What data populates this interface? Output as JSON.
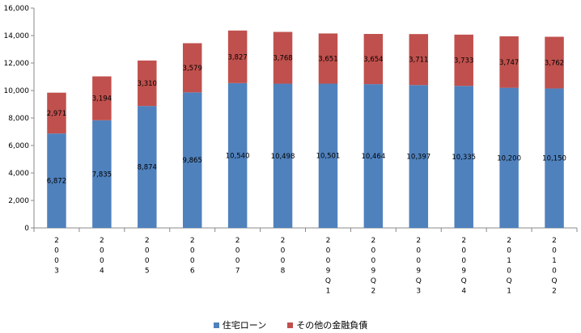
{
  "chart_data": {
    "type": "bar",
    "stacked": true,
    "categories": [
      [
        "2",
        "0",
        "0",
        "3"
      ],
      [
        "2",
        "0",
        "0",
        "4"
      ],
      [
        "2",
        "0",
        "0",
        "5"
      ],
      [
        "2",
        "0",
        "0",
        "6"
      ],
      [
        "2",
        "0",
        "0",
        "7"
      ],
      [
        "2",
        "0",
        "0",
        "8"
      ],
      [
        "2",
        "0",
        "0",
        "9",
        "Q",
        "1"
      ],
      [
        "2",
        "0",
        "0",
        "9",
        "Q",
        "2"
      ],
      [
        "2",
        "0",
        "0",
        "9",
        "Q",
        "3"
      ],
      [
        "2",
        "0",
        "0",
        "9",
        "Q",
        "4"
      ],
      [
        "2",
        "0",
        "1",
        "0",
        "Q",
        "1"
      ],
      [
        "2",
        "0",
        "1",
        "0",
        "Q",
        "2"
      ]
    ],
    "series": [
      {
        "name": "住宅ローン",
        "color": "#4f81bd",
        "values": [
          6872,
          7835,
          8874,
          9865,
          10540,
          10498,
          10501,
          10464,
          10397,
          10335,
          10200,
          10150
        ],
        "labels": [
          "6,872",
          "7,835",
          "8,874",
          "9,865",
          "10,540",
          "10,498",
          "10,501",
          "10,464",
          "10,397",
          "10,335",
          "10,200",
          "10,150"
        ]
      },
      {
        "name": "その他の金融負債",
        "color": "#c0504d",
        "values": [
          2971,
          3194,
          3310,
          3579,
          3827,
          3768,
          3651,
          3654,
          3711,
          3733,
          3747,
          3762
        ],
        "labels": [
          "2,971",
          "3,194",
          "3,310",
          "3,579",
          "3,827",
          "3,768",
          "3,651",
          "3,654",
          "3,711",
          "3,733",
          "3,747",
          "3,762"
        ]
      }
    ],
    "ylim": [
      0,
      16000
    ],
    "yticks": [
      0,
      2000,
      4000,
      6000,
      8000,
      10000,
      12000,
      14000,
      16000
    ],
    "ytick_labels": [
      "0",
      "2,000",
      "4,000",
      "6,000",
      "8,000",
      "10,000",
      "12,000",
      "14,000",
      "16,000"
    ],
    "grid": false,
    "legend_position": "bottom"
  }
}
